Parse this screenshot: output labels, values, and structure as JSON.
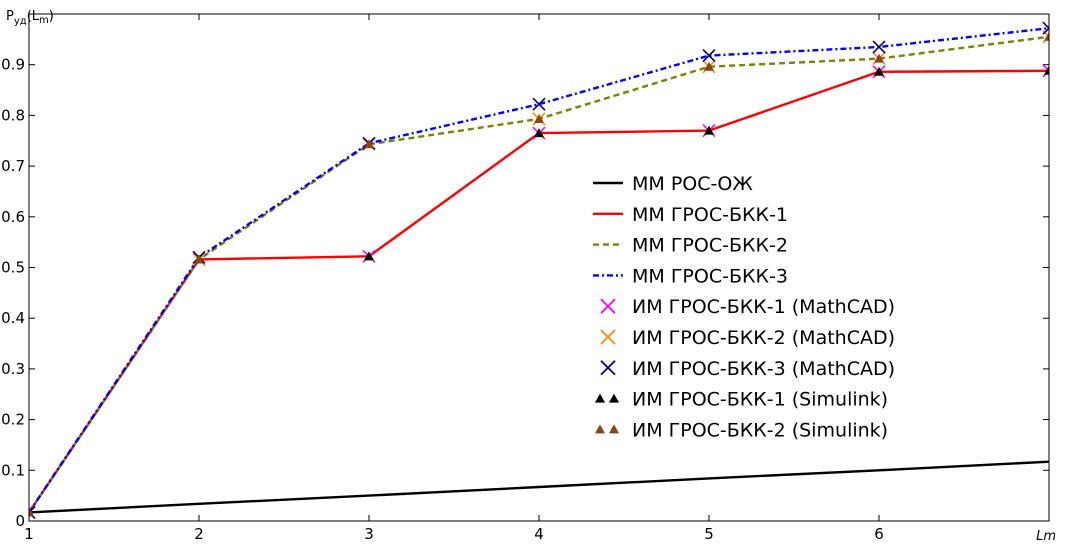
{
  "chart_data": {
    "type": "line",
    "ylabel": "P_уд(L_m)",
    "xlabel": "Lm",
    "xlim": [
      1,
      7
    ],
    "ylim": [
      0,
      1
    ],
    "xticks": [
      1,
      2,
      3,
      4,
      5,
      6
    ],
    "yticks": [
      0,
      0.1,
      0.2,
      0.3,
      0.4,
      0.5,
      0.6,
      0.7,
      0.8,
      0.9
    ],
    "ytick_labels": [
      "0",
      "0.1",
      "0.2",
      "0.3",
      "0.4",
      "0.5",
      "0.6",
      "0.7",
      "0.8",
      "0.9"
    ],
    "xtick_labels": [
      "1",
      "2",
      "3",
      "4",
      "5",
      "6"
    ],
    "grid": false,
    "legend_position": "center-right",
    "x": [
      1,
      2,
      3,
      4,
      5,
      6,
      7
    ],
    "series": [
      {
        "name": "ММ РОС-ОЖ",
        "kind": "line",
        "color": "#000000",
        "dash": "solid",
        "values": [
          0.017,
          0.034,
          0.05,
          0.067,
          0.084,
          0.1,
          0.117
        ]
      },
      {
        "name": "ММ ГРОС-БКК-1",
        "kind": "line",
        "color": "#ff0000",
        "dash": "solid",
        "values": [
          0.017,
          0.516,
          0.522,
          0.765,
          0.77,
          0.886,
          0.888
        ]
      },
      {
        "name": "ММ ГРОС-БКК-2",
        "kind": "line",
        "color": "#808000",
        "dash": "dashed",
        "values": [
          0.017,
          0.516,
          0.743,
          0.793,
          0.896,
          0.912,
          0.955
        ]
      },
      {
        "name": "ММ ГРОС-БКК-3",
        "kind": "line",
        "color": "#0000ff",
        "dash": "dashdot",
        "values": [
          0.017,
          0.52,
          0.745,
          0.822,
          0.918,
          0.935,
          0.972
        ]
      },
      {
        "name": "ИМ ГРОС-БКК-1 (MathCAD)",
        "kind": "marker-x",
        "color": "#ff00ff",
        "values": [
          0.017,
          0.516,
          0.522,
          0.765,
          0.77,
          0.886,
          0.888
        ]
      },
      {
        "name": "ИМ ГРОС-БКК-2 (MathCAD)",
        "kind": "marker-x",
        "color": "#ff8c00",
        "values": [
          0.017,
          0.516,
          0.743,
          0.793,
          0.896,
          0.912,
          0.955
        ]
      },
      {
        "name": "ИМ ГРОС-БКК-3 (MathCAD)",
        "kind": "marker-x",
        "color": "#000080",
        "values": [
          0.017,
          0.52,
          0.745,
          0.822,
          0.918,
          0.935,
          0.972
        ]
      },
      {
        "name": "ИМ ГРОС-БКК-1 (Simulink)",
        "kind": "marker-triangle",
        "color": "#000000",
        "values": [
          0.017,
          0.516,
          0.522,
          0.765,
          0.77,
          0.886,
          0.888
        ]
      },
      {
        "name": "ИМ ГРОС-БКК-2 (Simulink)",
        "kind": "marker-triangle",
        "color": "#8b4513",
        "values": [
          0.017,
          0.516,
          0.743,
          0.793,
          0.896,
          0.912,
          0.955
        ]
      }
    ]
  }
}
